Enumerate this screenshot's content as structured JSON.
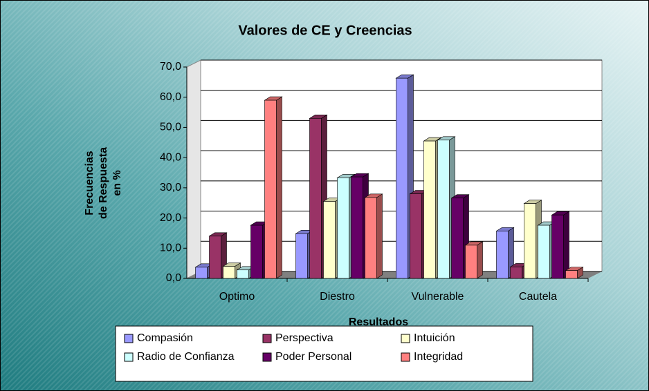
{
  "chart_data": {
    "type": "bar3d",
    "title": "Valores de CE y Creencias",
    "xlabel": "Resultados",
    "ylabel": [
      "Frecuencias",
      "de Respuesta",
      "en %"
    ],
    "categories": [
      "Optimo",
      "Diestro",
      "Vulnerable",
      "Cautela"
    ],
    "series": [
      {
        "name": "Compasión",
        "color": "#9999ff",
        "values": [
          3.7,
          14.8,
          66.3,
          15.7
        ]
      },
      {
        "name": "Perspectiva",
        "color": "#993366",
        "values": [
          14.0,
          53.0,
          28.0,
          3.8
        ]
      },
      {
        "name": "Intuición",
        "color": "#ffffcc",
        "values": [
          4.0,
          25.5,
          45.5,
          24.8
        ]
      },
      {
        "name": "Radio de Confianza",
        "color": "#ccffff",
        "values": [
          2.8,
          33.3,
          45.8,
          17.6
        ]
      },
      {
        "name": "Poder Personal",
        "color": "#660066",
        "values": [
          17.6,
          33.6,
          26.6,
          21.0
        ]
      },
      {
        "name": "Integridad",
        "color": "#ff8080",
        "values": [
          59.0,
          26.8,
          11.0,
          2.6
        ]
      }
    ],
    "ylim": [
      0,
      70
    ],
    "yticks": [
      {
        "value": 0,
        "label": "0,0"
      },
      {
        "value": 10,
        "label": "10,0"
      },
      {
        "value": 20,
        "label": "20,0"
      },
      {
        "value": 30,
        "label": "30,0"
      },
      {
        "value": 40,
        "label": "40,0"
      },
      {
        "value": 50,
        "label": "50,0"
      },
      {
        "value": 60,
        "label": "60,0"
      },
      {
        "value": 70,
        "label": "70,0"
      }
    ],
    "grid": true
  }
}
